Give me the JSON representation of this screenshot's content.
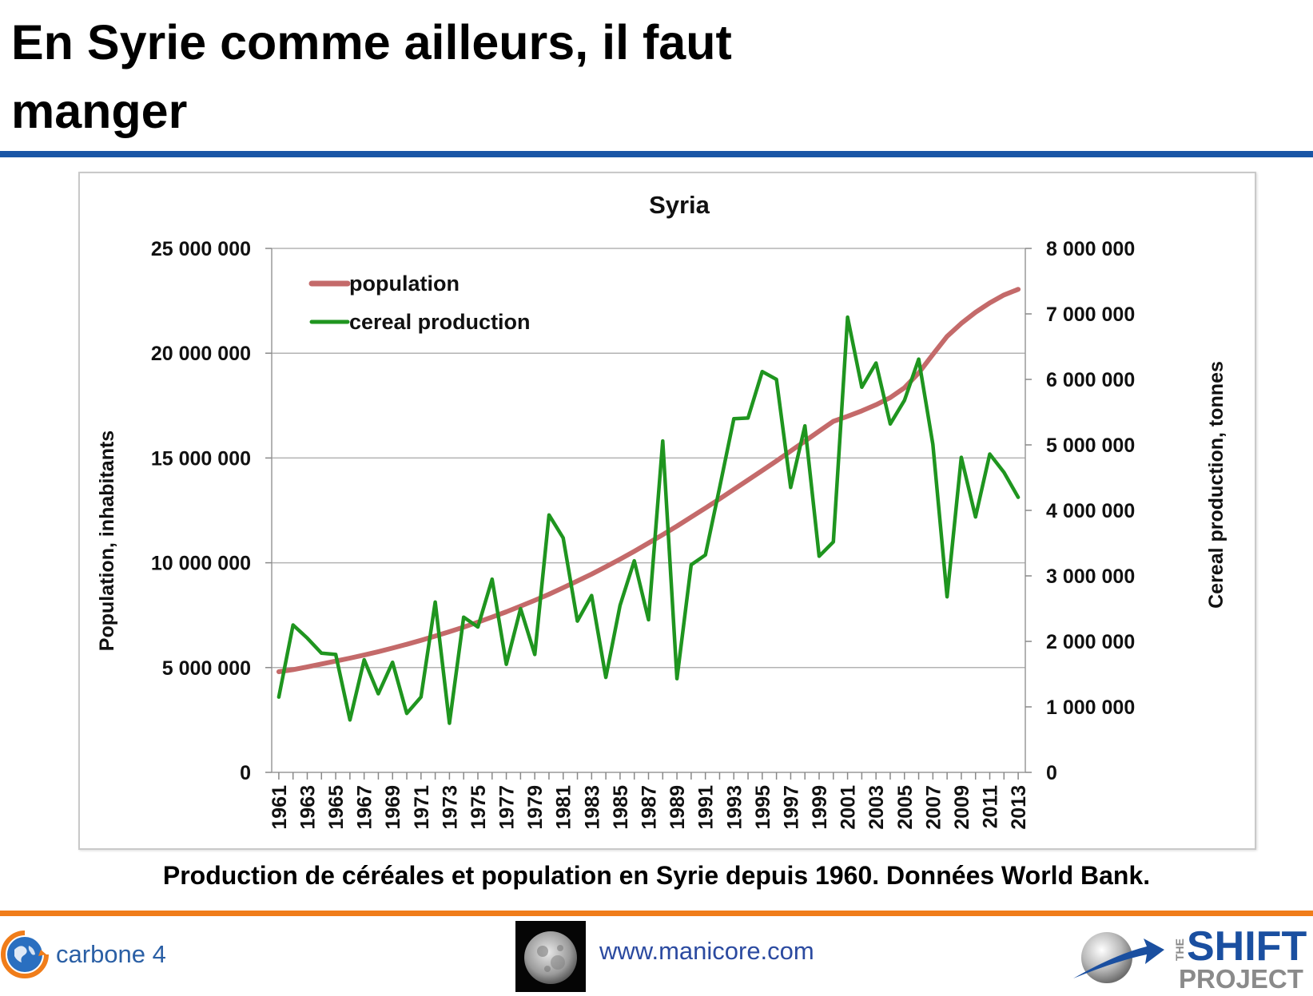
{
  "slide": {
    "title": "En Syrie comme ailleurs, il faut manger",
    "caption": "Production de céréales et population en Syrie depuis 1960. Données World Bank."
  },
  "footer": {
    "carbone_label": "carbone 4",
    "manicore_url": "www.manicore.com",
    "shift_the": "THE",
    "shift_main": "SHIFT",
    "shift_sub": "PROJECT"
  },
  "colors": {
    "title_rule": "#1a56a6",
    "footer_rule": "#f07d1a",
    "population": "#c46a6a",
    "cereal": "#1f951f",
    "grid": "#b3b3b3"
  },
  "chart_data": {
    "type": "line",
    "title": "Syria",
    "y_left_label": "Population, inhabitants",
    "y_right_label": "Cereal production, tonnes",
    "y_left_range": [
      0,
      25000000
    ],
    "y_right_range": [
      0,
      8000000
    ],
    "y_left_ticks": [
      "0",
      "5 000 000",
      "10 000 000",
      "15 000 000",
      "20 000 000",
      "25 000 000"
    ],
    "y_right_ticks": [
      "0",
      "1 000 000",
      "2 000 000",
      "3 000 000",
      "4 000 000",
      "5 000 000",
      "6 000 000",
      "7 000 000",
      "8 000 000"
    ],
    "x_tick_labels": [
      "1961",
      "1963",
      "1965",
      "1967",
      "1969",
      "1971",
      "1973",
      "1975",
      "1977",
      "1979",
      "1981",
      "1983",
      "1985",
      "1987",
      "1989",
      "1991",
      "1993",
      "1995",
      "1997",
      "1999",
      "2001",
      "2003",
      "2005",
      "2007",
      "2009",
      "2011",
      "2013"
    ],
    "grid": true,
    "legend_position": "top-left",
    "series": [
      {
        "name": "population",
        "axis": "left",
        "x": [
          1961,
          1962,
          1963,
          1964,
          1965,
          1966,
          1967,
          1968,
          1969,
          1970,
          1971,
          1972,
          1973,
          1974,
          1975,
          1976,
          1977,
          1978,
          1979,
          1980,
          1981,
          1982,
          1983,
          1984,
          1985,
          1986,
          1987,
          1988,
          1989,
          1990,
          1991,
          1992,
          1993,
          1994,
          1995,
          1996,
          1997,
          1998,
          1999,
          2000,
          2001,
          2002,
          2003,
          2004,
          2005,
          2006,
          2007,
          2008,
          2009,
          2010,
          2011,
          2012,
          2013
        ],
        "values": [
          4800000,
          4900000,
          5030000,
          5170000,
          5310000,
          5450000,
          5600000,
          5760000,
          5930000,
          6110000,
          6300000,
          6500000,
          6710000,
          6930000,
          7170000,
          7410000,
          7660000,
          7930000,
          8210000,
          8500000,
          8810000,
          9130000,
          9460000,
          9810000,
          10170000,
          10550000,
          10940000,
          11340000,
          11750000,
          12180000,
          12610000,
          13050000,
          13500000,
          13950000,
          14400000,
          14860000,
          15330000,
          15800000,
          16280000,
          16750000,
          16990000,
          17250000,
          17540000,
          17880000,
          18350000,
          19060000,
          19940000,
          20800000,
          21420000,
          21950000,
          22400000,
          22780000,
          23050000
        ]
      },
      {
        "name": "cereal production",
        "axis": "right",
        "x": [
          1961,
          1962,
          1963,
          1964,
          1965,
          1966,
          1967,
          1968,
          1969,
          1970,
          1971,
          1972,
          1973,
          1974,
          1975,
          1976,
          1977,
          1978,
          1979,
          1980,
          1981,
          1982,
          1983,
          1984,
          1985,
          1986,
          1987,
          1988,
          1989,
          1990,
          1991,
          1992,
          1993,
          1994,
          1995,
          1996,
          1997,
          1998,
          1999,
          2000,
          2001,
          2002,
          2003,
          2004,
          2005,
          2006,
          2007,
          2008,
          2009,
          2010,
          2011,
          2012,
          2013
        ],
        "values": [
          1150000,
          2250000,
          2050000,
          1820000,
          1800000,
          800000,
          1720000,
          1200000,
          1680000,
          900000,
          1150000,
          2600000,
          750000,
          2370000,
          2220000,
          2950000,
          1650000,
          2500000,
          1800000,
          3930000,
          3580000,
          2310000,
          2700000,
          1450000,
          2550000,
          3230000,
          2330000,
          5060000,
          1430000,
          3170000,
          3320000,
          4350000,
          5400000,
          5410000,
          6120000,
          6000000,
          4350000,
          5290000,
          3300000,
          3520000,
          6950000,
          5880000,
          6250000,
          5320000,
          5680000,
          6310000,
          5010000,
          2680000,
          4810000,
          3900000,
          4860000,
          4580000,
          4200000
        ]
      }
    ]
  }
}
